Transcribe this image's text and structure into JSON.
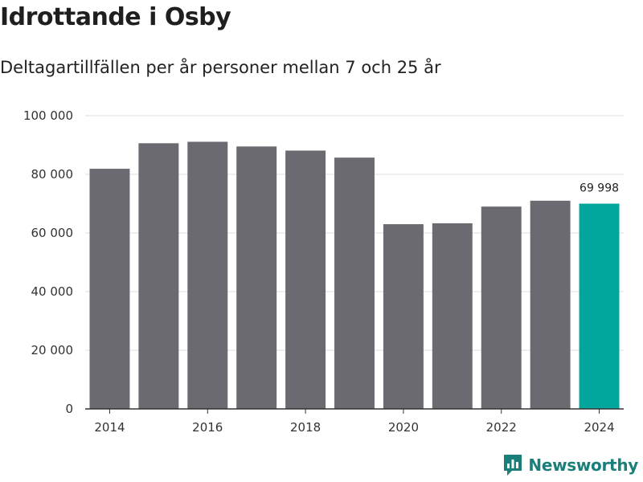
{
  "header": {
    "title": "Idrottande i Osby",
    "subtitle": "Deltagartillfällen per år personer mellan 7 och 25 år"
  },
  "brand": {
    "name": "Newsworthy",
    "color": "#1a7f7a"
  },
  "chart_data": {
    "type": "bar",
    "title": "Idrottande i Osby",
    "subtitle": "Deltagartillfällen per år personer mellan 7 och 25 år",
    "xlabel": "",
    "ylabel": "",
    "categories": [
      "2014",
      "2015",
      "2016",
      "2017",
      "2018",
      "2019",
      "2020",
      "2021",
      "2022",
      "2023",
      "2024"
    ],
    "values": [
      81900,
      90600,
      91100,
      89500,
      88100,
      85700,
      63000,
      63300,
      69000,
      71000,
      69998
    ],
    "ylim": [
      0,
      100000
    ],
    "y_ticks": [
      0,
      20000,
      40000,
      60000,
      80000,
      100000
    ],
    "y_tick_labels": [
      "0",
      "20 000",
      "40 000",
      "60 000",
      "80 000",
      "100 000"
    ],
    "x_tick_labels": [
      "2014",
      "2016",
      "2018",
      "2020",
      "2022",
      "2024"
    ],
    "highlight_index": 10,
    "highlight_label": "69 998",
    "bar_color": "#6b6a70",
    "highlight_color": "#00a69c",
    "grid": true
  }
}
